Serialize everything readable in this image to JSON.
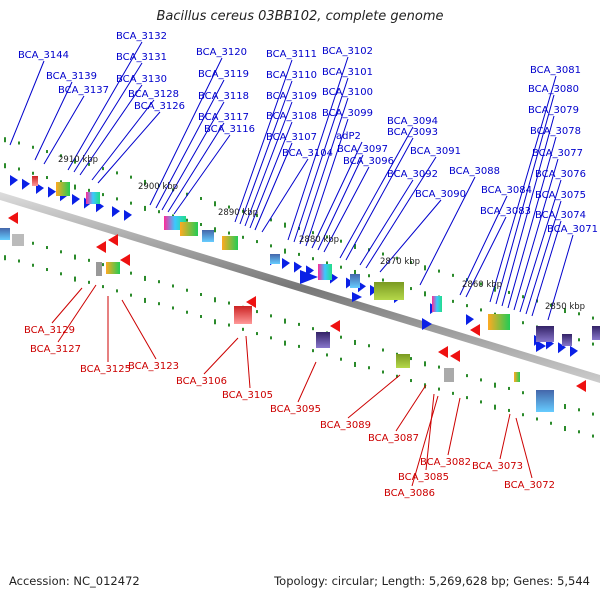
{
  "title": "Bacillus cereus 03BB102, complete genome",
  "footer": {
    "accession": "Accession: NC_012472",
    "summary": "Topology: circular; Length: 5,269,628 bp; Genes: 5,544"
  },
  "colors": {
    "top_label": "#0000cc",
    "bottom_label": "#cc0000",
    "forward_gene": "#0a20e6",
    "reverse_gene": "#ee1111",
    "backbone": "#888888",
    "tick": "#2a8a2a"
  },
  "ticks": [
    "2910 kbp",
    "2900 kbp",
    "2890 kbp",
    "2880 kbp",
    "2870 kbp",
    "2860 kbp",
    "2850 kbp"
  ],
  "top_labels": [
    "BCA_3144",
    "BCA_3132",
    "BCA_3131",
    "BCA_3139",
    "BCA_3137",
    "BCA_3130",
    "BCA_3128",
    "BCA_3126",
    "BCA_3120",
    "BCA_3119",
    "BCA_3118",
    "BCA_3117",
    "BCA_3116",
    "BCA_3111",
    "BCA_3110",
    "BCA_3109",
    "BCA_3108",
    "BCA_3107",
    "BCA_3104",
    "BCA_3102",
    "BCA_3101",
    "BCA_3100",
    "BCA_3099",
    "adP2",
    "BCA_3097",
    "BCA_3096",
    "BCA_3094",
    "BCA_3093",
    "BCA_3092",
    "BCA_3091",
    "BCA_3090",
    "BCA_3088",
    "BCA_3084",
    "BCA_3083",
    "BCA_3081",
    "BCA_3080",
    "BCA_3079",
    "BCA_3078",
    "BCA_3077",
    "BCA_3076",
    "BCA_3075",
    "BCA_3074",
    "BCA_3071"
  ],
  "bottom_labels": [
    "BCA_3129",
    "BCA_3127",
    "BCA_3125",
    "BCA_3123",
    "BCA_3106",
    "BCA_3105",
    "BCA_3095",
    "BCA_3089",
    "BCA_3087",
    "BCA_3085",
    "BCA_3086",
    "BCA_3082",
    "BCA_3073",
    "BCA_3072"
  ]
}
